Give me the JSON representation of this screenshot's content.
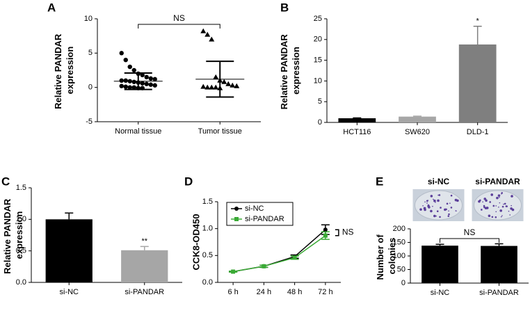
{
  "chart_data": [
    {
      "type": "dot",
      "panel_label": "A",
      "y_label": "Relative PANDAR expression",
      "categories": [
        "Normal tissue",
        "Tumor tissue"
      ],
      "values": [
        [
          5,
          4,
          3,
          2.5,
          2,
          1.8,
          1.5,
          1.3,
          1.2,
          1,
          1,
          0.9,
          0.8,
          0.7,
          0.6,
          0.5,
          0.4,
          0.3,
          0.2,
          0.1,
          0,
          0,
          -0.1,
          -0.1
        ],
        [
          8.2,
          7.7,
          7,
          1.5,
          1,
          0.8,
          0.5,
          0.3,
          0.2,
          0.1,
          0,
          0,
          0,
          -0.1
        ]
      ],
      "means": [
        0.9,
        1.2
      ],
      "sds": [
        1.2,
        2.6
      ],
      "markers": [
        "circle",
        "triangle"
      ],
      "color": "#000000",
      "annotation": "NS",
      "ylim": [
        -5,
        10
      ],
      "yticks": [
        -5,
        0,
        5,
        10
      ]
    },
    {
      "type": "bar",
      "panel_label": "B",
      "y_label": "Relative PANDAR expression",
      "categories": [
        "HCT116",
        "SW620",
        "DLD-1"
      ],
      "values": [
        1.0,
        1.4,
        18.8
      ],
      "errors": [
        0.1,
        0.1,
        4.4
      ],
      "colors": [
        "#000000",
        "#a6a6a6",
        "#7f7f7f"
      ],
      "annotations": [
        null,
        null,
        "*"
      ],
      "ylim": [
        0,
        25
      ],
      "yticks": [
        0,
        5,
        10,
        15,
        20,
        25
      ]
    },
    {
      "type": "bar",
      "panel_label": "C",
      "y_label": "Relative PANDAR expression",
      "categories": [
        "si-NC",
        "si-PANDAR"
      ],
      "values": [
        1.0,
        0.51
      ],
      "errors": [
        0.1,
        0.06
      ],
      "colors": [
        "#000000",
        "#a6a6a6"
      ],
      "annotations": [
        null,
        "**"
      ],
      "ylim": [
        0,
        1.5
      ],
      "yticks": [
        {
          "value": 0,
          "label": "0.0"
        },
        0.5,
        {
          "value": 1,
          "label": "1.0"
        },
        1.5
      ]
    },
    {
      "type": "line",
      "panel_label": "D",
      "y_label": "CCK8-OD450",
      "categories": [
        "6 h",
        "24 h",
        "48 h",
        "72 h"
      ],
      "series": [
        {
          "name": "si-NC",
          "color": "#000000",
          "marker": "circle",
          "values": [
            0.2,
            0.3,
            0.48,
            0.98
          ],
          "errors": [
            0.01,
            0.02,
            0.03,
            0.09
          ]
        },
        {
          "name": "si-PANDAR",
          "color": "#3aaa35",
          "marker": "square",
          "values": [
            0.2,
            0.3,
            0.46,
            0.87
          ],
          "errors": [
            0.01,
            0.02,
            0.03,
            0.07
          ]
        }
      ],
      "annotation": "NS",
      "ylim": [
        0,
        1.5
      ],
      "yticks": [
        {
          "value": 0,
          "label": "0.0"
        },
        0.5,
        {
          "value": 1,
          "label": "1.0"
        },
        1.5
      ]
    },
    {
      "type": "bar",
      "panel_label": "E",
      "y_label": "Number of colonies",
      "image_labels": [
        "si-NC",
        "si-PANDAR"
      ],
      "categories": [
        "si-NC",
        "si-PANDAR"
      ],
      "values": [
        138,
        137
      ],
      "errors": [
        5,
        8
      ],
      "colors": [
        "#000000",
        "#000000"
      ],
      "annotation": "NS",
      "ylim": [
        0,
        200
      ],
      "yticks": [
        0,
        50,
        100,
        150,
        200
      ]
    }
  ]
}
